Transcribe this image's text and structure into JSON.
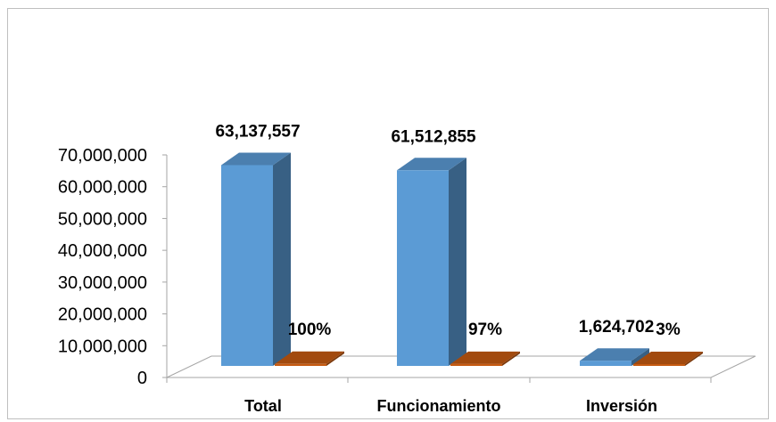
{
  "chart_data": {
    "type": "bar",
    "title": "",
    "xlabel": "",
    "ylabel": "",
    "categories": [
      "Total",
      "Funcionamiento",
      "Inversión"
    ],
    "series": [
      {
        "values": [
          63137557,
          61512855,
          1624702
        ],
        "labels": [
          "63,137,557",
          "61,512,855",
          "1,624,702"
        ],
        "color": "#5b9bd5"
      },
      {
        "values": [
          1.0,
          0.97,
          0.03
        ],
        "labels": [
          "100%",
          "97%",
          "3%"
        ],
        "color": "#c55a11"
      }
    ],
    "ylim": [
      0,
      70000000
    ],
    "yticks": [
      "0",
      "10,000,000",
      "20,000,000",
      "30,000,000",
      "40,000,000",
      "50,000,000",
      "60,000,000",
      "70,000,000"
    ],
    "legend": "none",
    "grid": false,
    "style": "3d-column"
  }
}
